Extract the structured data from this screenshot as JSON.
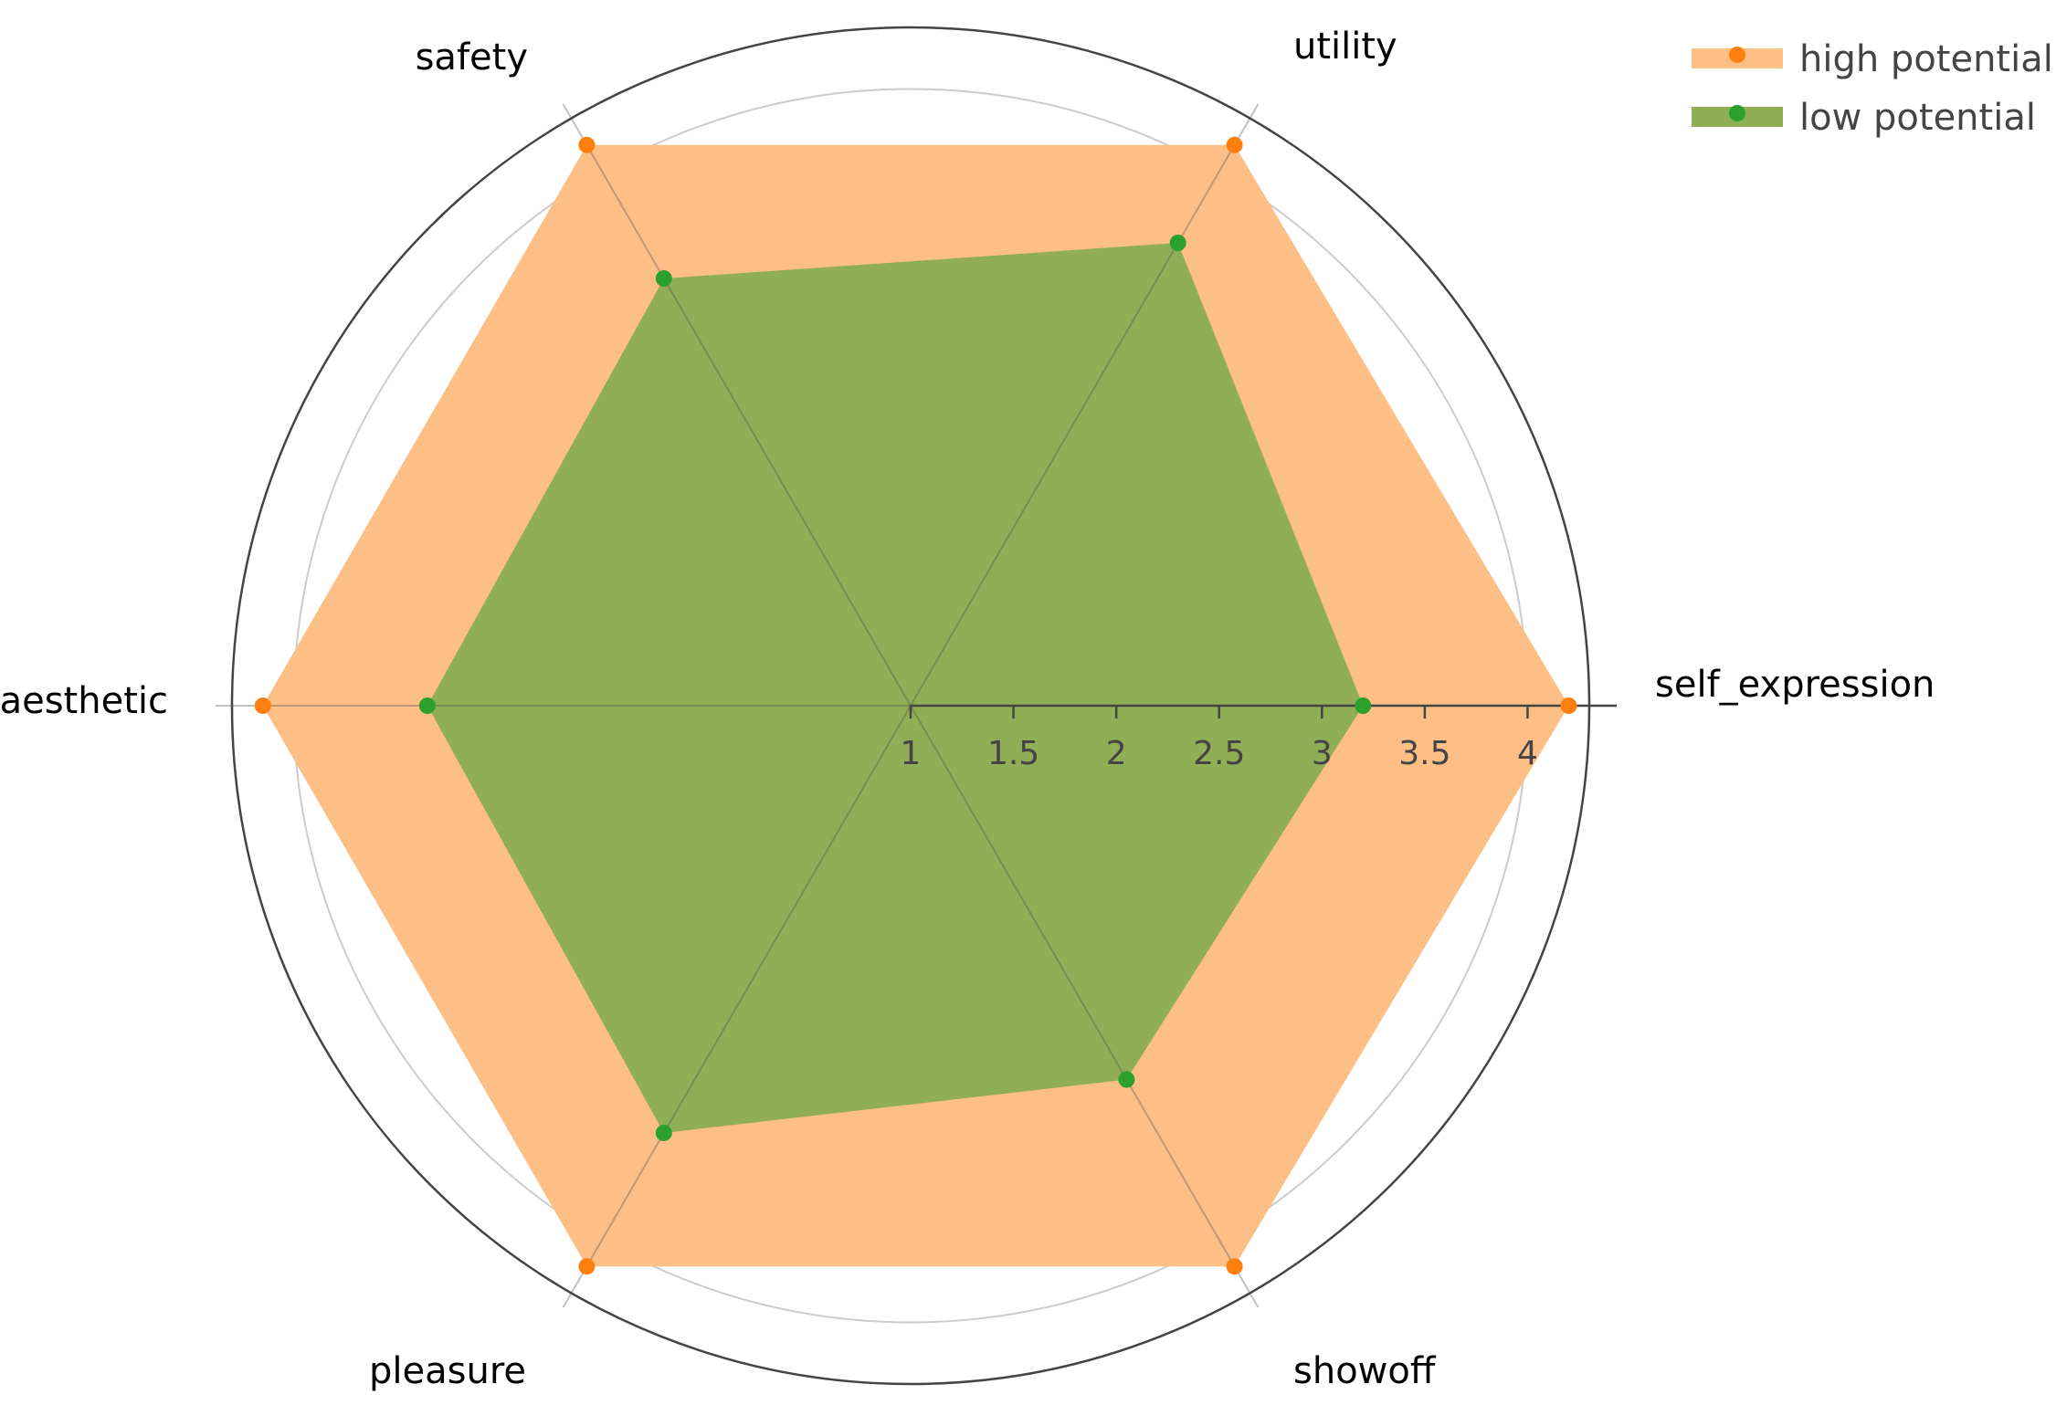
{
  "chart_data": {
    "type": "radar",
    "axes": [
      "self_expression",
      "utility",
      "safety",
      "aesthetic",
      "pleasure",
      "showoff"
    ],
    "radial_range": [
      1,
      4.3
    ],
    "radial_ticks": [
      "1",
      "1.5",
      "2",
      "2.5",
      "3",
      "3.5",
      "4"
    ],
    "radial_tick_values": [
      1,
      1.5,
      2,
      2.5,
      3,
      3.5,
      4
    ],
    "grid": true,
    "legend_position": "top-right",
    "series": [
      {
        "name": "high potential",
        "color": "#ff7f0e",
        "fill": "#fdbf86",
        "values": [
          4.2,
          4.15,
          4.15,
          4.15,
          4.15,
          4.15
        ]
      },
      {
        "name": "low potential",
        "color": "#2ca02c",
        "fill": "#8fae55",
        "values": [
          3.2,
          3.6,
          3.4,
          3.35,
          3.4,
          3.1
        ]
      }
    ]
  }
}
